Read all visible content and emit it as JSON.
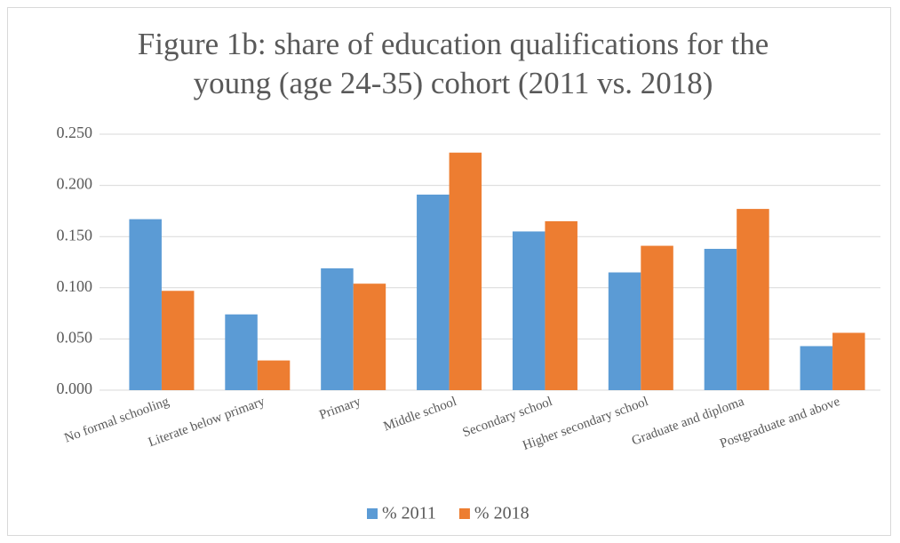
{
  "chart_data": {
    "type": "bar",
    "title": "Figure 1b: share of education qualifications for the young (age 24-35) cohort (2011 vs. 2018)",
    "categories": [
      "No formal schooling",
      "Literate below primary",
      "Primary",
      "Middle school",
      "Secondary school",
      "Higher secondary school",
      "Graduate and diploma",
      "Postgraduate and above"
    ],
    "series": [
      {
        "name": "% 2011",
        "color": "#5b9bd5",
        "values": [
          0.167,
          0.074,
          0.119,
          0.191,
          0.155,
          0.115,
          0.138,
          0.043
        ]
      },
      {
        "name": "% 2018",
        "color": "#ed7d31",
        "values": [
          0.097,
          0.029,
          0.104,
          0.232,
          0.165,
          0.141,
          0.177,
          0.056
        ]
      }
    ],
    "ylim": [
      0,
      0.25
    ],
    "yticks": [
      {
        "value": 0,
        "label": "0.000"
      },
      {
        "value": 0.05,
        "label": "0.050"
      },
      {
        "value": 0.1,
        "label": "0.100"
      },
      {
        "value": 0.15,
        "label": "0.150"
      },
      {
        "value": 0.2,
        "label": "0.200"
      },
      {
        "value": 0.25,
        "label": "0.250"
      }
    ],
    "grid": true,
    "legend": "bottom"
  }
}
